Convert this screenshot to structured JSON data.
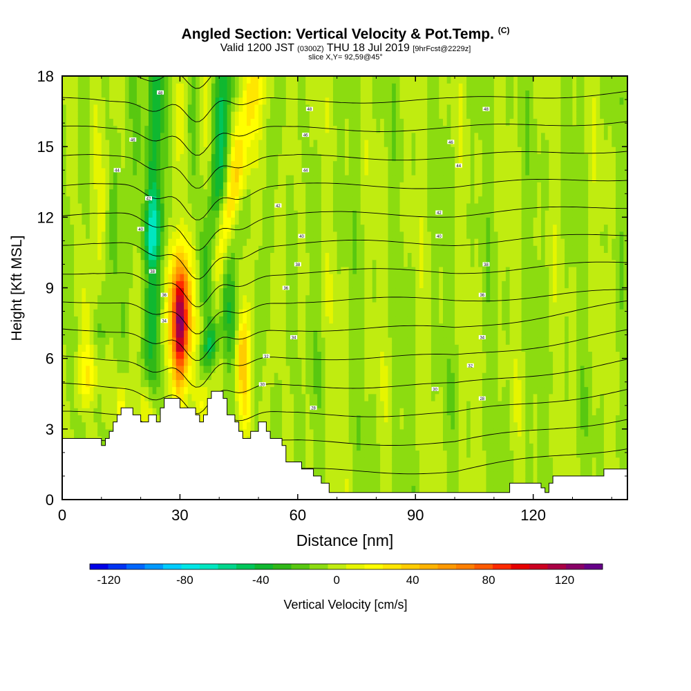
{
  "titles": {
    "main": "Angled Section: Vertical Velocity & Pot.Temp.",
    "main_tag": "(C)",
    "valid_a": "Valid 1200 JST",
    "valid_b": "(0300Z)",
    "valid_c": "THU 18 Jul 2019",
    "valid_d": "[9hrFcst@2229z]",
    "slice": "slice X,Y= 92,59@45°"
  },
  "chart_data": {
    "type": "heatmap",
    "xlabel": "Distance [nm]",
    "ylabel": "Height [Kft MSL]",
    "xlim": [
      0,
      144
    ],
    "ylim": [
      0,
      18
    ],
    "xticks": [
      0,
      30,
      60,
      90,
      120
    ],
    "yticks": [
      0,
      3,
      6,
      9,
      12,
      15,
      18
    ],
    "colorbar": {
      "label": "Vertical Velocity [cm/s]",
      "range": [
        -130,
        140
      ],
      "step": 10,
      "tick_values": [
        -120,
        -80,
        -40,
        0,
        40,
        80,
        120
      ],
      "colors": [
        "#0000e6",
        "#0033f2",
        "#0066ff",
        "#0099ff",
        "#00ccff",
        "#00e6e6",
        "#00e6c0",
        "#00d68c",
        "#00c65a",
        "#10b830",
        "#30b818",
        "#58c810",
        "#8cdc10",
        "#c0ec10",
        "#e6f500",
        "#ffff00",
        "#ffe600",
        "#ffcc00",
        "#ffb300",
        "#ff9900",
        "#ff7f00",
        "#ff5a00",
        "#ff2a00",
        "#e60000",
        "#cc0020",
        "#aa0044",
        "#880066",
        "#660088"
      ]
    },
    "updraft_max": {
      "x": 30,
      "z": 8,
      "w": 130
    },
    "terrain": [
      [
        0,
        2.6
      ],
      [
        10,
        2.6
      ],
      [
        10,
        2.3
      ],
      [
        11,
        2.3
      ],
      [
        11,
        2.6
      ],
      [
        12,
        2.6
      ],
      [
        12,
        2.9
      ],
      [
        13,
        2.9
      ],
      [
        13,
        3.3
      ],
      [
        14,
        3.3
      ],
      [
        14,
        3.6
      ],
      [
        15,
        3.6
      ],
      [
        15,
        3.9
      ],
      [
        18,
        3.9
      ],
      [
        18,
        3.6
      ],
      [
        20,
        3.6
      ],
      [
        20,
        3.3
      ],
      [
        22,
        3.3
      ],
      [
        22,
        3.6
      ],
      [
        24,
        3.6
      ],
      [
        24,
        3.3
      ],
      [
        25,
        3.3
      ],
      [
        25,
        3.9
      ],
      [
        26,
        3.9
      ],
      [
        26,
        4.3
      ],
      [
        30,
        4.3
      ],
      [
        30,
        3.9
      ],
      [
        34,
        3.9
      ],
      [
        34,
        3.6
      ],
      [
        35,
        3.6
      ],
      [
        35,
        3.3
      ],
      [
        36,
        3.3
      ],
      [
        36,
        3.6
      ],
      [
        37,
        3.6
      ],
      [
        37,
        4.3
      ],
      [
        38,
        4.3
      ],
      [
        38,
        4.6
      ],
      [
        41,
        4.6
      ],
      [
        41,
        4.3
      ],
      [
        42,
        4.3
      ],
      [
        42,
        3.6
      ],
      [
        44,
        3.6
      ],
      [
        44,
        3.3
      ],
      [
        45,
        3.3
      ],
      [
        45,
        2.9
      ],
      [
        46,
        2.9
      ],
      [
        46,
        2.6
      ],
      [
        48,
        2.6
      ],
      [
        48,
        2.9
      ],
      [
        50,
        2.9
      ],
      [
        50,
        3.3
      ],
      [
        52,
        3.3
      ],
      [
        52,
        2.9
      ],
      [
        53,
        2.9
      ],
      [
        53,
        2.6
      ],
      [
        56,
        2.6
      ],
      [
        56,
        2.3
      ],
      [
        57,
        2.3
      ],
      [
        57,
        1.6
      ],
      [
        61,
        1.6
      ],
      [
        61,
        1.3
      ],
      [
        64,
        1.3
      ],
      [
        64,
        1.0
      ],
      [
        66,
        1.0
      ],
      [
        66,
        0.7
      ],
      [
        68,
        0.7
      ],
      [
        68,
        0.3
      ],
      [
        114,
        0.3
      ],
      [
        114,
        0.7
      ],
      [
        122,
        0.7
      ],
      [
        122,
        0.5
      ],
      [
        123,
        0.5
      ],
      [
        123,
        0.3
      ],
      [
        124,
        0.3
      ],
      [
        124,
        0.7
      ],
      [
        125,
        0.7
      ],
      [
        125,
        1.0
      ],
      [
        138,
        1.0
      ],
      [
        138,
        1.3
      ],
      [
        144,
        1.3
      ]
    ],
    "theta_contours": {
      "min": 22,
      "max": 70,
      "interval": 2,
      "labeled": [
        {
          "x": 25,
          "z": 17.3,
          "label": "48"
        },
        {
          "x": 18,
          "z": 15.3,
          "label": "46"
        },
        {
          "x": 14,
          "z": 14.0,
          "label": "44"
        },
        {
          "x": 22,
          "z": 12.8,
          "label": "42"
        },
        {
          "x": 20,
          "z": 11.5,
          "label": "40"
        },
        {
          "x": 23,
          "z": 9.7,
          "label": "38"
        },
        {
          "x": 26,
          "z": 8.7,
          "label": "36"
        },
        {
          "x": 26,
          "z": 7.6,
          "label": "34"
        },
        {
          "x": 63,
          "z": 16.6,
          "label": "48"
        },
        {
          "x": 62,
          "z": 15.5,
          "label": "46"
        },
        {
          "x": 62,
          "z": 14.0,
          "label": "44"
        },
        {
          "x": 55,
          "z": 12.5,
          "label": "42"
        },
        {
          "x": 61,
          "z": 11.2,
          "label": "40"
        },
        {
          "x": 60,
          "z": 10.0,
          "label": "38"
        },
        {
          "x": 57,
          "z": 9.0,
          "label": "36"
        },
        {
          "x": 59,
          "z": 6.9,
          "label": "34"
        },
        {
          "x": 52,
          "z": 6.1,
          "label": "32"
        },
        {
          "x": 51,
          "z": 4.9,
          "label": "30"
        },
        {
          "x": 64,
          "z": 3.9,
          "label": "28"
        },
        {
          "x": 108,
          "z": 16.6,
          "label": "48"
        },
        {
          "x": 99,
          "z": 15.2,
          "label": "46"
        },
        {
          "x": 101,
          "z": 14.2,
          "label": "44"
        },
        {
          "x": 96,
          "z": 12.2,
          "label": "42"
        },
        {
          "x": 96,
          "z": 11.2,
          "label": "40"
        },
        {
          "x": 108,
          "z": 10.0,
          "label": "38"
        },
        {
          "x": 107,
          "z": 8.7,
          "label": "36"
        },
        {
          "x": 107,
          "z": 6.9,
          "label": "34"
        },
        {
          "x": 104,
          "z": 5.7,
          "label": "32"
        },
        {
          "x": 95,
          "z": 4.7,
          "label": "30"
        },
        {
          "x": 107,
          "z": 4.3,
          "label": "28"
        }
      ]
    }
  }
}
